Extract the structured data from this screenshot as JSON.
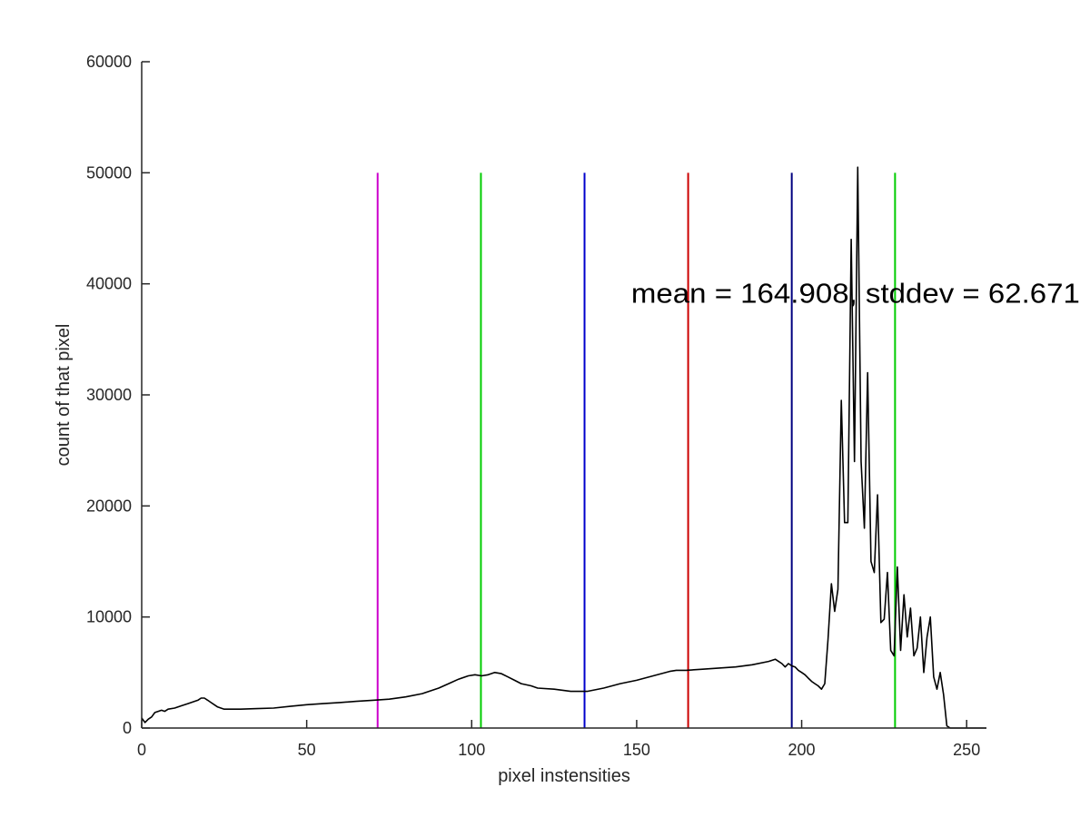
{
  "chart_data": {
    "type": "line",
    "title": "",
    "xlabel": "pixel instensities",
    "ylabel": "count of that pixel",
    "xlim": [
      0,
      256
    ],
    "ylim": [
      0,
      60000
    ],
    "xticks": [
      0,
      50,
      100,
      150,
      200,
      250
    ],
    "yticks": [
      0,
      10000,
      20000,
      30000,
      40000,
      50000,
      60000
    ],
    "grid": false,
    "annotation": "mean = 164.908, stddev = 62.671",
    "annotation_pos": [
      150,
      39200
    ],
    "series": [
      {
        "color": "#000000",
        "x": [
          0,
          1,
          2,
          3,
          4,
          5,
          6,
          7,
          8,
          10,
          12,
          14,
          16,
          17,
          18,
          19,
          20,
          21,
          22,
          23,
          24,
          25,
          28,
          30,
          35,
          40,
          45,
          50,
          55,
          60,
          65,
          70,
          75,
          80,
          85,
          90,
          93,
          96,
          99,
          101,
          103,
          105,
          107,
          109,
          111,
          113,
          115,
          118,
          120,
          125,
          130,
          135,
          140,
          145,
          150,
          155,
          160,
          162,
          165,
          170,
          175,
          180,
          185,
          190,
          192,
          193,
          194,
          195,
          196,
          197,
          198,
          199,
          200,
          201,
          202,
          203,
          204,
          205,
          206,
          207,
          208,
          209,
          210,
          211,
          212,
          213,
          214,
          215,
          216,
          217,
          218,
          219,
          220,
          221,
          222,
          223,
          224,
          225,
          226,
          227,
          228,
          229,
          230,
          231,
          232,
          233,
          234,
          235,
          236,
          237,
          238,
          239,
          240,
          241,
          242,
          243,
          244,
          245,
          246,
          250,
          256
        ],
        "y": [
          900,
          500,
          800,
          1000,
          1400,
          1500,
          1600,
          1500,
          1700,
          1800,
          2000,
          2200,
          2400,
          2500,
          2700,
          2700,
          2500,
          2300,
          2100,
          1900,
          1800,
          1700,
          1700,
          1700,
          1750,
          1800,
          1950,
          2100,
          2200,
          2300,
          2400,
          2500,
          2600,
          2800,
          3100,
          3600,
          4000,
          4400,
          4700,
          4800,
          4700,
          4800,
          5000,
          4900,
          4600,
          4300,
          4000,
          3800,
          3600,
          3500,
          3300,
          3300,
          3600,
          4000,
          4300,
          4700,
          5100,
          5200,
          5200,
          5300,
          5400,
          5500,
          5700,
          6000,
          6200,
          6000,
          5800,
          5500,
          5800,
          5600,
          5500,
          5200,
          5000,
          4800,
          4500,
          4200,
          4000,
          3800,
          3500,
          4000,
          8000,
          13000,
          10500,
          12500,
          29500,
          18500,
          18500,
          44000,
          24000,
          50500,
          24000,
          18000,
          32000,
          15000,
          14000,
          21000,
          9500,
          9800,
          14000,
          7000,
          6500,
          14500,
          7000,
          12000,
          8200,
          10800,
          6500,
          7200,
          10000,
          5000,
          8200,
          10000,
          4600,
          3500,
          5000,
          3000,
          200,
          0,
          0,
          0,
          0
        ]
      }
    ],
    "vertical_lines": [
      {
        "x": 71.5,
        "color": "#cc00cc"
      },
      {
        "x": 102.8,
        "color": "#00cc00"
      },
      {
        "x": 134.2,
        "color": "#0000cc"
      },
      {
        "x": 165.6,
        "color": "#cc0000"
      },
      {
        "x": 197.0,
        "color": "#000080"
      },
      {
        "x": 228.3,
        "color": "#00cc00"
      }
    ],
    "vertical_lines_ymax": 50000
  }
}
